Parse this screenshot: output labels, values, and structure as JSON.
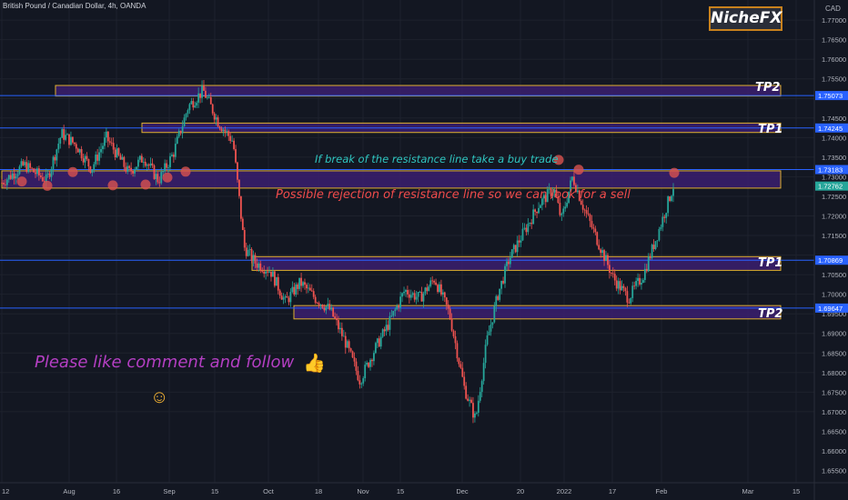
{
  "header": {
    "title": "British Pound / Canadian Dollar, 4h, OANDA",
    "logo": "NicheFX",
    "currency": "CAD"
  },
  "annotations": {
    "buy_note": "If break of the resistance line take a buy trade",
    "sell_note": "Possible rejection of resistance line so we can look for a sell",
    "cta": "Please like comment and follow",
    "thumbs_up": "👍",
    "smiley": "☺",
    "tp_labels": [
      "TP2",
      "TP1",
      "TP1",
      "TP2"
    ]
  },
  "colors": {
    "background": "#131722",
    "zone_fill": "#3b1f6e",
    "zone_border": "#e0b02e",
    "level_line": "#2962ff",
    "bull": "#26a69a",
    "bear": "#ef5350",
    "marker": "#d9534f"
  },
  "chart_data": {
    "type": "candlestick",
    "symbol": "GBPCAD",
    "timeframe": "4h",
    "y_axis": {
      "ticks": [
        "1.77000",
        "1.76500",
        "1.76000",
        "1.75500",
        "1.74500",
        "1.74000",
        "1.73500",
        "1.73000",
        "1.72500",
        "1.72000",
        "1.71500",
        "1.70500",
        "1.70000",
        "1.69500",
        "1.69000",
        "1.68500",
        "1.68000",
        "1.67500",
        "1.67000",
        "1.66500",
        "1.66000",
        "1.65500"
      ],
      "range": [
        1.6535,
        1.7735
      ]
    },
    "x_axis": {
      "ticks": [
        "12",
        "Aug",
        "16",
        "Sep",
        "15",
        "Oct",
        "18",
        "Nov",
        "15",
        "Dec",
        "20",
        "2022",
        "17",
        "Feb",
        "Mar",
        "15"
      ]
    },
    "zones": [
      {
        "label": "TP2",
        "low": 1.7506,
        "high": 1.7533
      },
      {
        "label": "TP1",
        "low": 1.7413,
        "high": 1.7437
      },
      {
        "label": "",
        "low": 1.7271,
        "high": 1.7315
      },
      {
        "label": "TP1",
        "low": 1.7061,
        "high": 1.7096
      },
      {
        "label": "TP2",
        "low": 1.6937,
        "high": 1.6971
      }
    ],
    "levels": [
      {
        "value": 1.75073,
        "label": "1.75073"
      },
      {
        "value": 1.74245,
        "label": "1.74245"
      },
      {
        "value": 1.73183,
        "label": "1.73183"
      },
      {
        "value": 1.70869,
        "label": "1.70869"
      },
      {
        "value": 1.69647,
        "label": "1.69647"
      }
    ],
    "last_price": {
      "value": 1.72762,
      "label": "1.72762"
    },
    "close_path": [
      {
        "t": 0.0,
        "v": 1.7285
      },
      {
        "t": 0.03,
        "v": 1.733
      },
      {
        "t": 0.06,
        "v": 1.729
      },
      {
        "t": 0.08,
        "v": 1.741
      },
      {
        "t": 0.1,
        "v": 1.738
      },
      {
        "t": 0.12,
        "v": 1.732
      },
      {
        "t": 0.14,
        "v": 1.74
      },
      {
        "t": 0.17,
        "v": 1.731
      },
      {
        "t": 0.19,
        "v": 1.735
      },
      {
        "t": 0.21,
        "v": 1.729
      },
      {
        "t": 0.23,
        "v": 1.736
      },
      {
        "t": 0.25,
        "v": 1.748
      },
      {
        "t": 0.27,
        "v": 1.752
      },
      {
        "t": 0.29,
        "v": 1.744
      },
      {
        "t": 0.31,
        "v": 1.739
      },
      {
        "t": 0.325,
        "v": 1.712
      },
      {
        "t": 0.34,
        "v": 1.708
      },
      {
        "t": 0.36,
        "v": 1.706
      },
      {
        "t": 0.38,
        "v": 1.698
      },
      {
        "t": 0.4,
        "v": 1.703
      },
      {
        "t": 0.42,
        "v": 1.699
      },
      {
        "t": 0.44,
        "v": 1.696
      },
      {
        "t": 0.46,
        "v": 1.688
      },
      {
        "t": 0.48,
        "v": 1.678
      },
      {
        "t": 0.5,
        "v": 1.686
      },
      {
        "t": 0.52,
        "v": 1.693
      },
      {
        "t": 0.54,
        "v": 1.701
      },
      {
        "t": 0.56,
        "v": 1.699
      },
      {
        "t": 0.58,
        "v": 1.704
      },
      {
        "t": 0.6,
        "v": 1.695
      },
      {
        "t": 0.62,
        "v": 1.676
      },
      {
        "t": 0.635,
        "v": 1.668
      },
      {
        "t": 0.65,
        "v": 1.688
      },
      {
        "t": 0.665,
        "v": 1.7
      },
      {
        "t": 0.68,
        "v": 1.709
      },
      {
        "t": 0.7,
        "v": 1.716
      },
      {
        "t": 0.72,
        "v": 1.723
      },
      {
        "t": 0.74,
        "v": 1.727
      },
      {
        "t": 0.75,
        "v": 1.719
      },
      {
        "t": 0.765,
        "v": 1.73
      },
      {
        "t": 0.78,
        "v": 1.722
      },
      {
        "t": 0.8,
        "v": 1.713
      },
      {
        "t": 0.82,
        "v": 1.704
      },
      {
        "t": 0.84,
        "v": 1.699
      },
      {
        "t": 0.86,
        "v": 1.705
      },
      {
        "t": 0.88,
        "v": 1.716
      },
      {
        "t": 0.9,
        "v": 1.7276
      }
    ]
  }
}
